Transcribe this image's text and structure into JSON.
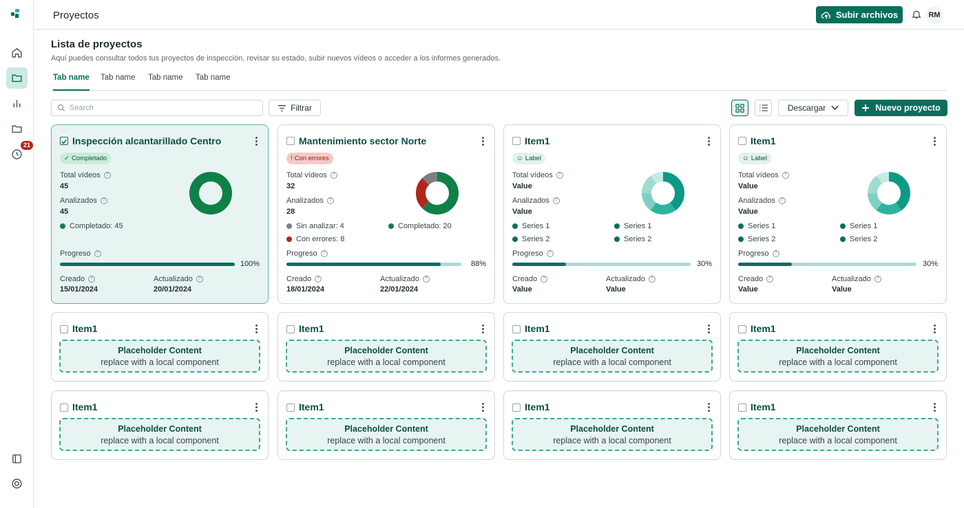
{
  "header": {
    "title": "Proyectos",
    "upload_label": "Subir archivos",
    "avatar_initials": "RM"
  },
  "sidebar": {
    "history_badge": "21"
  },
  "section": {
    "title": "Lista de proyectos",
    "description": "Aquí puedes consultar todos tus proyectos de inspección, revisar su estado, subir nuevos vídeos o acceder a los informes generados."
  },
  "tabs": [
    "Tab name",
    "Tab name",
    "Tab name",
    "Tab name"
  ],
  "toolbar": {
    "search_placeholder": "Search",
    "filter_label": "Filtrar",
    "download_label": "Descargar",
    "new_project_label": "Nuevo proyecto"
  },
  "labels": {
    "total_videos": "Total vídeos",
    "analyzed": "Analizados",
    "progress": "Progreso",
    "created": "Creado",
    "updated": "Actualizado"
  },
  "colors": {
    "primary": "#0b6e5c",
    "completed": "#0f8048",
    "error": "#b3261e",
    "unanalyzed": "#7a8083"
  },
  "cards": [
    {
      "title": "Inspección alcantarillado Centro",
      "checked": true,
      "status": "Completado",
      "total_videos": "45",
      "analyzed": "45",
      "legend": [
        {
          "text": "Completado: 45",
          "color": "#0f8048"
        }
      ],
      "progress_pct": 100,
      "progress_text": "100%",
      "created": "15/01/2024",
      "updated": "20/01/2024"
    },
    {
      "title": "Mantenimiento sector Norte",
      "checked": false,
      "status": "Con errores",
      "total_videos": "32",
      "analyzed": "28",
      "legend": [
        {
          "text": "Sin analizar: 4",
          "color": "#7a8083"
        },
        {
          "text": "Completado: 20",
          "color": "#0f8048"
        },
        {
          "text": "Con errores: 8",
          "color": "#b3261e"
        }
      ],
      "progress_pct": 88,
      "progress_text": "88%",
      "created": "18/01/2024",
      "updated": "22/01/2024"
    },
    {
      "title": "Item1",
      "checked": false,
      "status": "Label",
      "total_videos": "Value",
      "analyzed": "Value",
      "legend": [
        {
          "text": "Series 1",
          "color": "#0b6e5c"
        },
        {
          "text": "Series 1",
          "color": "#0b6e5c"
        },
        {
          "text": "Series 2",
          "color": "#0b6e5c"
        },
        {
          "text": "Series 2",
          "color": "#0b6e5c"
        }
      ],
      "progress_pct": 30,
      "progress_text": "30%",
      "created": "Value",
      "updated": "Value"
    },
    {
      "title": "Item1",
      "checked": false,
      "status": "Label",
      "total_videos": "Value",
      "analyzed": "Value",
      "legend": [
        {
          "text": "Series 1",
          "color": "#0b6e5c"
        },
        {
          "text": "Series 1",
          "color": "#0b6e5c"
        },
        {
          "text": "Series 2",
          "color": "#0b6e5c"
        },
        {
          "text": "Series 2",
          "color": "#0b6e5c"
        }
      ],
      "progress_pct": 30,
      "progress_text": "30%",
      "created": "Value",
      "updated": "Value"
    }
  ],
  "placeholder_cards": {
    "title": "Item1",
    "content_title": "Placeholder Content",
    "content_sub": "replace with a local component"
  }
}
